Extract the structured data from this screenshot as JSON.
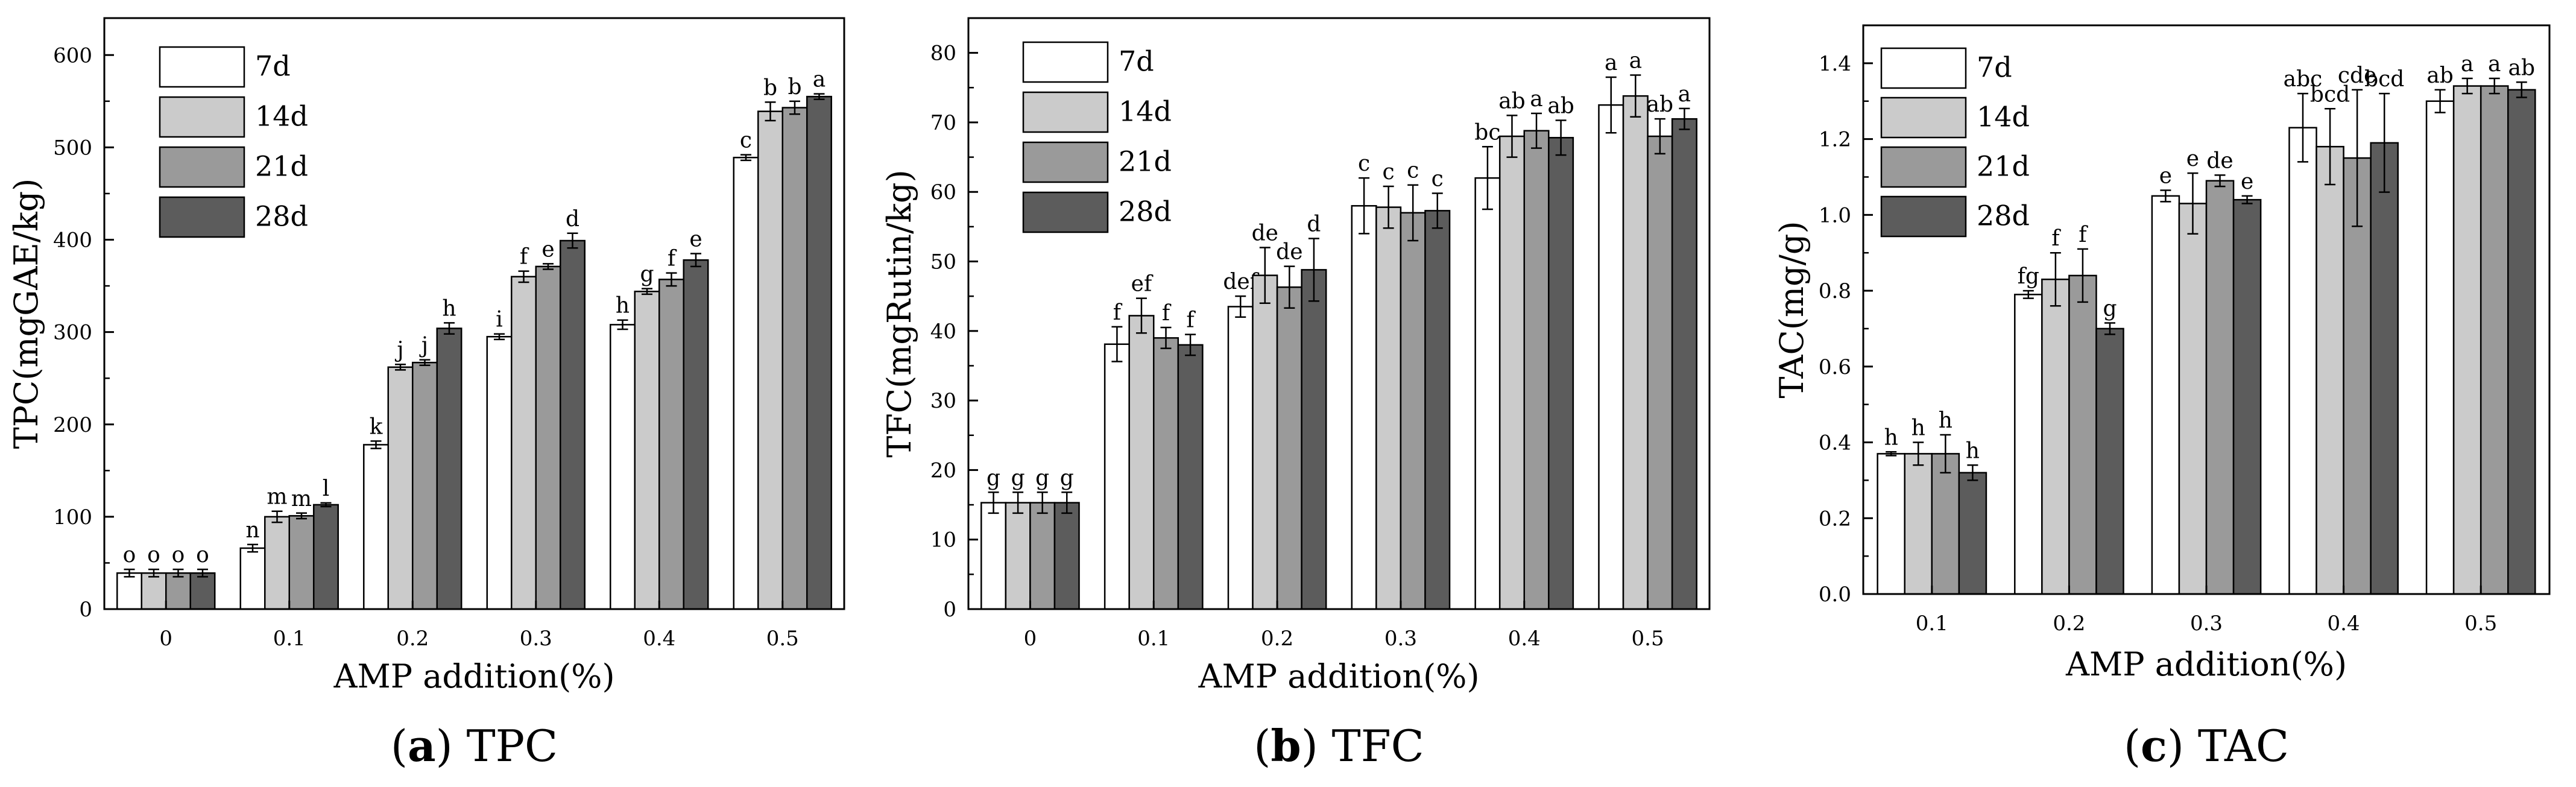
{
  "chart_data": [
    {
      "type": "bar",
      "panel": "a",
      "caption_letter": "(a)",
      "caption_text": " TPC",
      "title": "",
      "xlabel": "AMP addition(%)",
      "ylabel": "TPC(mgGAE/kg)",
      "ylim": [
        0,
        640
      ],
      "yticks": [
        0,
        100,
        200,
        300,
        400,
        500,
        600
      ],
      "categories": [
        "0",
        "0.1",
        "0.2",
        "0.3",
        "0.4",
        "0.5"
      ],
      "series": [
        {
          "name": "7d",
          "color": "#ffffff",
          "values": [
            39,
            66,
            178,
            295,
            308,
            489
          ],
          "errors": [
            4,
            4,
            4,
            3,
            5,
            3
          ],
          "letters": [
            "o",
            "n",
            "k",
            "i",
            "h",
            "c"
          ]
        },
        {
          "name": "14d",
          "color": "#cbcbcb",
          "values": [
            39,
            100,
            262,
            360,
            344,
            539
          ],
          "errors": [
            4,
            6,
            3,
            6,
            3,
            10
          ],
          "letters": [
            "o",
            "m",
            "j",
            "f",
            "g",
            "b"
          ]
        },
        {
          "name": "21d",
          "color": "#9a9a9a",
          "values": [
            39,
            101,
            267,
            371,
            357,
            543
          ],
          "errors": [
            4,
            3,
            3,
            3,
            7,
            7
          ],
          "letters": [
            "o",
            "m",
            "j",
            "e",
            "f",
            "b"
          ]
        },
        {
          "name": "28d",
          "color": "#5c5c5c",
          "values": [
            39,
            113,
            304,
            399,
            378,
            555
          ],
          "errors": [
            4,
            2,
            6,
            8,
            7,
            3
          ],
          "letters": [
            "o",
            "l",
            "h",
            "d",
            "e",
            "a"
          ]
        }
      ]
    },
    {
      "type": "bar",
      "panel": "b",
      "caption_letter": "(b)",
      "caption_text": " TFC",
      "title": "",
      "xlabel": "AMP addition(%)",
      "ylabel": "TFC(mgRutin/kg)",
      "ylim": [
        0,
        85
      ],
      "yticks": [
        0,
        10,
        20,
        30,
        40,
        50,
        60,
        70,
        80
      ],
      "categories": [
        "0",
        "0.1",
        "0.2",
        "0.3",
        "0.4",
        "0.5"
      ],
      "series": [
        {
          "name": "7d",
          "color": "#ffffff",
          "values": [
            15.3,
            38.1,
            43.5,
            58.0,
            62.0,
            72.5
          ],
          "errors": [
            1.5,
            2.5,
            1.5,
            4.0,
            4.5,
            4.0
          ],
          "letters": [
            "g",
            "f",
            "def",
            "c",
            "bc",
            "a"
          ]
        },
        {
          "name": "14d",
          "color": "#cbcbcb",
          "values": [
            15.3,
            42.2,
            48.0,
            57.8,
            68.0,
            73.8
          ],
          "errors": [
            1.5,
            2.5,
            4.0,
            3.0,
            3.0,
            3.0
          ],
          "letters": [
            "g",
            "ef",
            "de",
            "c",
            "ab",
            "a"
          ]
        },
        {
          "name": "21d",
          "color": "#9a9a9a",
          "values": [
            15.3,
            39.0,
            46.3,
            57.0,
            68.8,
            68.0
          ],
          "errors": [
            1.5,
            1.5,
            3.0,
            4.0,
            2.5,
            2.5
          ],
          "letters": [
            "g",
            "f",
            "de",
            "c",
            "a",
            "ab"
          ]
        },
        {
          "name": "28d",
          "color": "#5c5c5c",
          "values": [
            15.3,
            38.0,
            48.8,
            57.3,
            67.8,
            70.5
          ],
          "errors": [
            1.5,
            1.5,
            4.5,
            2.5,
            2.5,
            1.5
          ],
          "letters": [
            "g",
            "f",
            "d",
            "c",
            "ab",
            "a"
          ]
        }
      ]
    },
    {
      "type": "bar",
      "panel": "c",
      "caption_letter": "(c)",
      "caption_text": " TAC",
      "title": "",
      "xlabel": "AMP addition(%)",
      "ylabel": "TAC(mg/g)",
      "ylim": [
        0,
        1.5
      ],
      "yticks": [
        "0.0",
        "0.2",
        "0.4",
        "0.6",
        "0.8",
        "1.0",
        "1.2",
        "1.4"
      ],
      "categories": [
        "0.1",
        "0.2",
        "0.3",
        "0.4",
        "0.5"
      ],
      "series": [
        {
          "name": "7d",
          "color": "#ffffff",
          "values": [
            0.37,
            0.79,
            1.05,
            1.23,
            1.3
          ],
          "errors": [
            0.005,
            0.01,
            0.015,
            0.09,
            0.03
          ],
          "letters": [
            "h",
            "fg",
            "e",
            "abc",
            "ab"
          ]
        },
        {
          "name": "14d",
          "color": "#cbcbcb",
          "values": [
            0.37,
            0.83,
            1.03,
            1.18,
            1.34
          ],
          "errors": [
            0.03,
            0.07,
            0.08,
            0.1,
            0.02
          ],
          "letters": [
            "h",
            "f",
            "e",
            "bcd",
            "a"
          ]
        },
        {
          "name": "21d",
          "color": "#9a9a9a",
          "values": [
            0.37,
            0.84,
            1.09,
            1.15,
            1.34
          ],
          "errors": [
            0.05,
            0.07,
            0.015,
            0.18,
            0.02
          ],
          "letters": [
            "h",
            "f",
            "de",
            "cde",
            "a"
          ]
        },
        {
          "name": "28d",
          "color": "#5c5c5c",
          "values": [
            0.32,
            0.7,
            1.04,
            1.19,
            1.33
          ],
          "errors": [
            0.02,
            0.015,
            0.01,
            0.13,
            0.02
          ],
          "letters": [
            "h",
            "g",
            "e",
            "bcd",
            "ab"
          ]
        }
      ]
    }
  ]
}
